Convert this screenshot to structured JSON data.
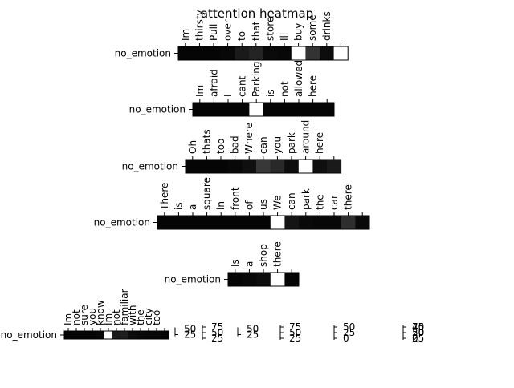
{
  "chart_data": {
    "type": "heatmap",
    "title": "attention heatmap",
    "colormap": [
      "#000000",
      "#ffffff"
    ],
    "rows": [
      {
        "label": "no_emotion",
        "tokens": [
          "Im",
          "thirsty",
          "Pull",
          "over",
          "to",
          "that",
          "store",
          "Ill",
          "buy",
          "some",
          "drinks",
          ""
        ],
        "values": [
          0.02,
          0.02,
          0.02,
          0.03,
          0.1,
          0.14,
          0.04,
          0.03,
          1.0,
          0.2,
          0.05,
          1.0
        ],
        "colorbar": {
          "ticks": [
            "50",
            "25"
          ]
        }
      },
      {
        "label": "no_emotion",
        "tokens": [
          "Im",
          "afraid",
          "I",
          "cant",
          "Parking",
          "is",
          "not",
          "allowed",
          "here",
          ""
        ],
        "values": [
          0.02,
          0.02,
          0.02,
          0.02,
          1.0,
          0.02,
          0.02,
          0.02,
          0.02,
          0.02
        ],
        "colorbar": {
          "ticks": [
            "75",
            "50",
            "25"
          ]
        }
      },
      {
        "label": "no_emotion",
        "tokens": [
          "Oh",
          "thats",
          "too",
          "bad",
          "Where",
          "can",
          "you",
          "park",
          "around",
          "here",
          ""
        ],
        "values": [
          0.02,
          0.02,
          0.02,
          0.03,
          0.06,
          0.22,
          0.16,
          0.05,
          1.0,
          0.06,
          0.1
        ],
        "colorbar": {
          "ticks": [
            "50",
            "25"
          ]
        }
      },
      {
        "label": "no_emotion",
        "tokens": [
          "There",
          "is",
          "a",
          "square",
          "in",
          "front",
          "of",
          "us",
          "We",
          "can",
          "park",
          "the",
          "car",
          "there",
          ""
        ],
        "values": [
          0.02,
          0.02,
          0.02,
          0.02,
          0.02,
          0.02,
          0.02,
          0.02,
          1.0,
          0.08,
          0.04,
          0.03,
          0.03,
          0.18,
          0.04
        ],
        "colorbar": {
          "ticks": [
            "75",
            "50",
            "25"
          ]
        }
      },
      {
        "label": "no_emotion",
        "tokens": [
          "Is",
          "a",
          "shop",
          "there",
          ""
        ],
        "values": [
          0.02,
          0.03,
          0.05,
          1.0,
          0.02
        ],
        "colorbar": {
          "ticks": [
            "50",
            "25",
            "0"
          ]
        }
      },
      {
        "label": "no_emotion",
        "tokens": [
          "Im",
          "not",
          "sure",
          "you",
          "know",
          "Im",
          "not",
          "familiar",
          "with",
          "the",
          "city",
          "too",
          ""
        ],
        "values": [
          0.02,
          0.02,
          0.02,
          0.02,
          0.03,
          1.0,
          0.1,
          0.12,
          0.05,
          0.04,
          0.03,
          0.03,
          0.02
        ],
        "colorbar": {
          "ticks": [
            "75",
            "50",
            "25"
          ]
        }
      },
      {
        "label": "",
        "tokens": [],
        "values": [],
        "colorbar": {
          "ticks": [
            "40",
            "20",
            "0"
          ]
        }
      }
    ]
  }
}
